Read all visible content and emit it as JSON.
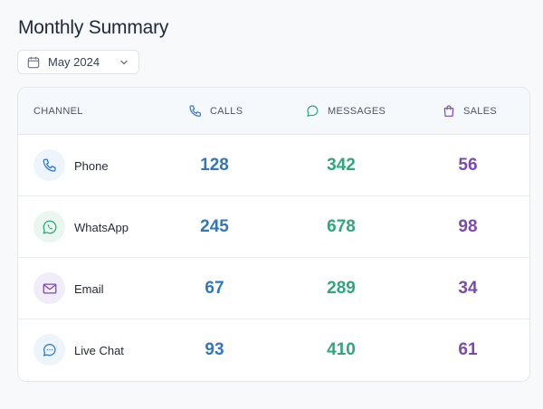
{
  "page": {
    "title": "Monthly Summary"
  },
  "filter": {
    "month_value": "May 2024",
    "calendar_icon": "calendar-icon",
    "chevron_icon": "chevron-down-icon"
  },
  "table": {
    "headers": {
      "channel": "CHANNEL",
      "calls": "CALLS",
      "messages": "MESSAGES",
      "sales": "SALES"
    },
    "rows": [
      {
        "name": "Phone",
        "icon": "phone-icon",
        "calls": "128",
        "messages": "342",
        "sales": "56"
      },
      {
        "name": "WhatsApp",
        "icon": "whatsapp-icon",
        "calls": "245",
        "messages": "678",
        "sales": "98"
      },
      {
        "name": "Email",
        "icon": "mail-icon",
        "calls": "67",
        "messages": "289",
        "sales": "34"
      },
      {
        "name": "Live Chat",
        "icon": "chat-icon",
        "calls": "93",
        "messages": "410",
        "sales": "61"
      }
    ]
  },
  "colors": {
    "calls": "#2f78bd",
    "messages": "#2ea77b",
    "sales": "#7a4ab0"
  }
}
